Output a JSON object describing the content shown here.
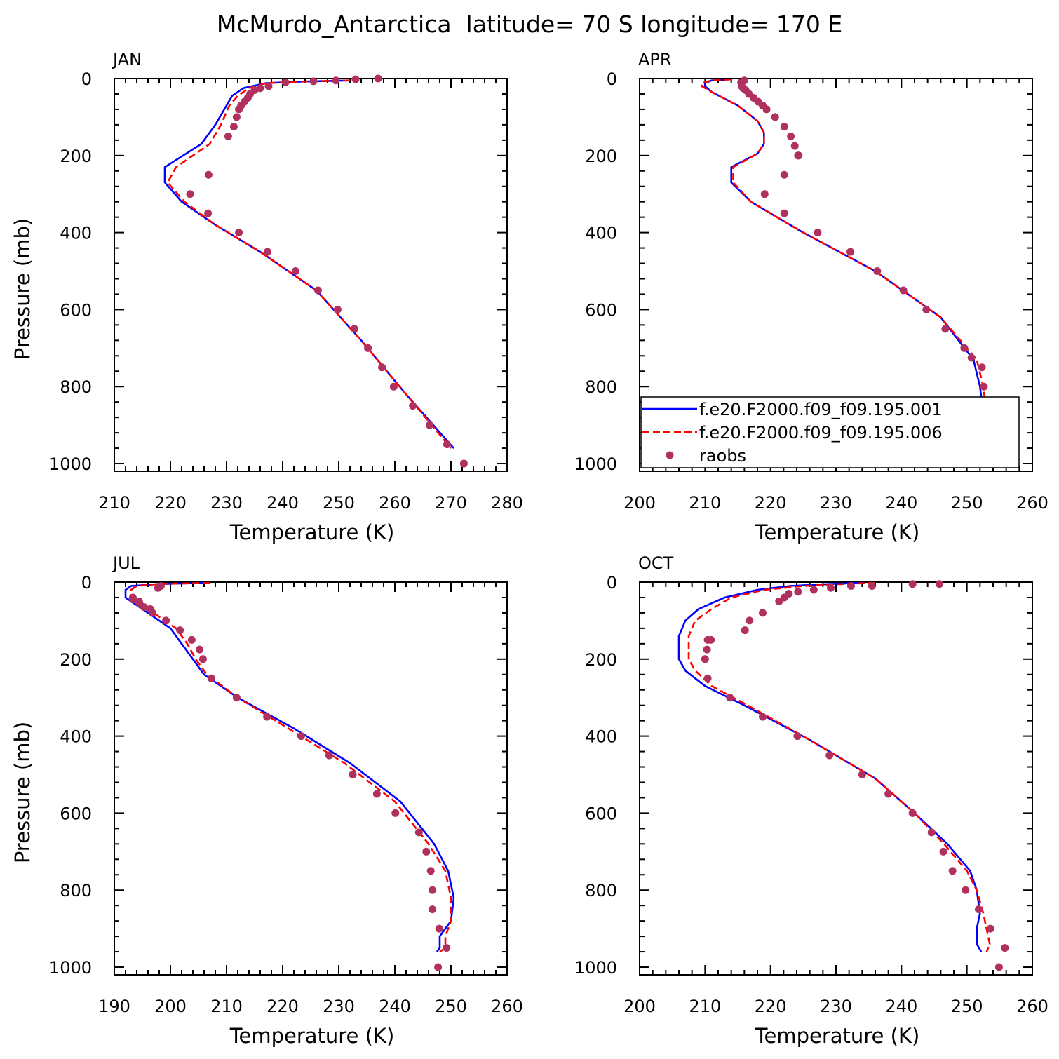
{
  "title": "McMurdo_Antarctica  latitude= 70 S longitude= 170 E",
  "colors": {
    "model_001": "#0000ff",
    "model_006": "#ff0000",
    "raobs": "#b03060"
  },
  "legend": {
    "panel": "APR",
    "placement": "lower-left",
    "entries": [
      {
        "label": "f.e20.F2000.f09_f09.195.001",
        "style": "solid",
        "color": "#0000ff"
      },
      {
        "label": "f.e20.F2000.f09_f09.195.006",
        "style": "dashed",
        "color": "#ff0000"
      },
      {
        "label": "raobs",
        "style": "dots",
        "color": "#b03060"
      }
    ]
  },
  "chart_data": [
    {
      "type": "line",
      "title": "JAN",
      "xlabel": "Temperature (K)",
      "ylabel": "Pressure (mb)",
      "xlim": [
        210,
        280
      ],
      "ylim": [
        1000,
        0
      ],
      "xticks": [
        210,
        220,
        230,
        240,
        250,
        260,
        270,
        280
      ],
      "yticks": [
        0,
        200,
        400,
        600,
        800,
        1000
      ],
      "series": [
        {
          "name": "f.e20.F2000.f09_f09.195.001",
          "style": "solid",
          "color": "#0000ff",
          "x": [
            252,
            243,
            237,
            233,
            231,
            230,
            228,
            225.5,
            219,
            219,
            222,
            228,
            236,
            246,
            254,
            262,
            270.5
          ],
          "y": [
            5,
            8,
            12,
            25,
            45,
            70,
            120,
            170,
            230,
            270,
            320,
            380,
            450,
            550,
            680,
            820,
            960
          ]
        },
        {
          "name": "f.e20.F2000.f09_f09.195.006",
          "style": "dashed",
          "color": "#ff0000",
          "x": [
            252,
            243,
            237,
            234,
            232,
            230.5,
            229,
            227,
            221,
            219.5,
            222.5,
            228,
            236,
            246,
            254,
            262,
            270
          ],
          "y": [
            5,
            8,
            12,
            25,
            45,
            70,
            120,
            170,
            230,
            270,
            320,
            380,
            450,
            550,
            680,
            820,
            960
          ]
        },
        {
          "name": "raobs",
          "style": "dots",
          "color": "#b03060",
          "x": [
            257,
            253,
            249.5,
            245.5,
            240.5,
            237.5,
            236,
            235,
            234.2,
            233.8,
            233.2,
            232.6,
            232.2,
            231.8,
            231.3,
            230.3,
            226.8,
            223.5,
            226.7,
            232.2,
            237.3,
            242.3,
            246.3,
            249.8,
            252.8,
            255.2,
            257.7,
            259.8,
            263.2,
            266.2,
            269.3,
            272.3
          ],
          "y": [
            0,
            2,
            5,
            7,
            10,
            20,
            25,
            30,
            40,
            50,
            60,
            70,
            80,
            100,
            125,
            150,
            250,
            300,
            350,
            400,
            450,
            500,
            550,
            600,
            650,
            700,
            750,
            800,
            850,
            900,
            950,
            1000
          ]
        }
      ]
    },
    {
      "type": "line",
      "title": "APR",
      "xlabel": "Temperature (K)",
      "ylabel": "",
      "xlim": [
        200,
        260
      ],
      "ylim": [
        1000,
        0
      ],
      "xticks": [
        200,
        210,
        220,
        230,
        240,
        250,
        260
      ],
      "yticks": [
        0,
        200,
        400,
        600,
        800,
        1000
      ],
      "series": [
        {
          "name": "f.e20.F2000.f09_f09.195.001",
          "style": "solid",
          "color": "#0000ff",
          "x": [
            214,
            211,
            210,
            210,
            211,
            215,
            218,
            219,
            219,
            218,
            214,
            214,
            217,
            225,
            236,
            246,
            251,
            252,
            252.5,
            253,
            255.5
          ],
          "y": [
            2,
            5,
            12,
            20,
            35,
            70,
            110,
            140,
            170,
            195,
            230,
            270,
            320,
            400,
            500,
            620,
            730,
            800,
            870,
            920,
            960
          ]
        },
        {
          "name": "f.e20.F2000.f09_f09.195.006",
          "style": "dashed",
          "color": "#ff0000",
          "x": [
            214,
            211,
            209.5,
            209.5,
            211,
            215,
            218,
            219,
            219,
            218,
            214.3,
            214.3,
            217,
            225,
            236,
            246,
            251.5,
            252.5,
            253,
            253.5,
            256
          ],
          "y": [
            2,
            5,
            12,
            20,
            35,
            70,
            110,
            140,
            170,
            195,
            230,
            270,
            320,
            400,
            500,
            620,
            730,
            800,
            870,
            920,
            960
          ]
        },
        {
          "name": "raobs",
          "style": "dots",
          "color": "#b03060",
          "x": [
            216,
            215.5,
            215.6,
            215.8,
            216.2,
            216.7,
            217.4,
            218.1,
            218.8,
            219.4,
            220.7,
            222.1,
            223.1,
            223.7,
            224.2,
            224.3,
            222.1,
            219.1,
            222.1,
            227.2,
            232.2,
            236.3,
            240.3,
            243.8,
            246.7,
            249.6,
            250.7,
            252.3,
            252.6,
            252.6,
            253.6,
            254.1,
            255.7,
            256.3
          ],
          "y": [
            5,
            10,
            20,
            25,
            30,
            40,
            50,
            60,
            70,
            80,
            100,
            125,
            150,
            175,
            200,
            200,
            250,
            300,
            350,
            400,
            450,
            500,
            550,
            600,
            650,
            700,
            725,
            750,
            800,
            850,
            875,
            900,
            950,
            1000
          ]
        }
      ]
    },
    {
      "type": "line",
      "title": "JUL",
      "xlabel": "Temperature (K)",
      "ylabel": "Pressure (mb)",
      "xlim": [
        190,
        260
      ],
      "ylim": [
        1000,
        0
      ],
      "xticks": [
        190,
        200,
        210,
        220,
        230,
        240,
        250,
        260
      ],
      "yticks": [
        0,
        200,
        400,
        600,
        800,
        1000
      ],
      "series": [
        {
          "name": "f.e20.F2000.f09_f09.195.001",
          "style": "solid",
          "color": "#0000ff",
          "x": [
            207,
            198,
            193,
            192,
            192,
            193,
            196,
            200,
            202,
            204,
            206,
            212,
            222,
            232,
            241,
            247,
            249.5,
            250.5,
            250,
            248,
            248,
            247.5
          ],
          "y": [
            2,
            5,
            10,
            20,
            40,
            50,
            80,
            120,
            160,
            200,
            240,
            300,
            380,
            470,
            570,
            680,
            750,
            820,
            880,
            920,
            950,
            960
          ]
        },
        {
          "name": "f.e20.F2000.f09_f09.195.006",
          "style": "dashed",
          "color": "#ff0000",
          "x": [
            207,
            198,
            194,
            193,
            193,
            194,
            197,
            201,
            203,
            204.5,
            206.5,
            212,
            221,
            231,
            240,
            246,
            249,
            250,
            250,
            249,
            249,
            248
          ],
          "y": [
            2,
            5,
            10,
            20,
            40,
            50,
            80,
            120,
            160,
            200,
            240,
            300,
            380,
            470,
            570,
            680,
            750,
            820,
            880,
            920,
            950,
            960
          ]
        },
        {
          "name": "raobs",
          "style": "dots",
          "color": "#b03060",
          "x": [
            198.3,
            197.8,
            193.3,
            193.3,
            194.4,
            194.5,
            195.3,
            196.4,
            196.8,
            199.2,
            201.7,
            203.8,
            205.2,
            205.8,
            207.3,
            211.8,
            217.2,
            223.3,
            228.3,
            232.5,
            236.8,
            240.1,
            244.3,
            245.6,
            246.4,
            246.7,
            246.7,
            247.9,
            249.2,
            247.7
          ],
          "y": [
            10,
            15,
            40,
            45,
            50,
            55,
            65,
            70,
            80,
            100,
            125,
            150,
            175,
            200,
            250,
            300,
            350,
            400,
            450,
            500,
            550,
            600,
            650,
            700,
            750,
            800,
            850,
            900,
            950,
            1000
          ]
        }
      ]
    },
    {
      "type": "line",
      "title": "OCT",
      "xlabel": "Temperature (K)",
      "ylabel": "",
      "xlim": [
        200,
        260
      ],
      "ylim": [
        1000,
        0
      ],
      "xticks": [
        200,
        210,
        220,
        230,
        240,
        250,
        260
      ],
      "yticks": [
        0,
        200,
        400,
        600,
        800,
        1000
      ],
      "series": [
        {
          "name": "f.e20.F2000.f09_f09.195.001",
          "style": "solid",
          "color": "#0000ff",
          "x": [
            234,
            229,
            223,
            218,
            213,
            209,
            207,
            206,
            206,
            207,
            210,
            216,
            226,
            236,
            242,
            247,
            250.5,
            251.5,
            252,
            251.5,
            251.5,
            252.2
          ],
          "y": [
            2,
            5,
            10,
            20,
            40,
            70,
            100,
            140,
            200,
            230,
            270,
            320,
            410,
            510,
            600,
            680,
            750,
            800,
            860,
            900,
            940,
            960
          ]
        },
        {
          "name": "f.e20.F2000.f09_f09.195.006",
          "style": "dashed",
          "color": "#ff0000",
          "x": [
            236,
            231,
            225,
            219,
            214,
            211,
            208.5,
            207.5,
            207.5,
            208.5,
            211,
            216.5,
            226,
            236,
            242,
            246.5,
            250,
            251.5,
            252.5,
            253,
            253.5,
            253
          ],
          "y": [
            2,
            5,
            10,
            20,
            40,
            70,
            100,
            140,
            200,
            230,
            270,
            320,
            410,
            510,
            600,
            680,
            750,
            800,
            860,
            900,
            940,
            960
          ]
        },
        {
          "name": "raobs",
          "style": "dots",
          "color": "#b03060",
          "x": [
            245.8,
            241.7,
            235.5,
            232.3,
            229.2,
            226.6,
            224.2,
            222.8,
            222.1,
            221.3,
            218.8,
            216.8,
            216.1,
            210.9,
            210.4,
            210.3,
            210.0,
            210.4,
            213.8,
            218.8,
            224.1,
            229.0,
            234.0,
            238.0,
            241.7,
            244.6,
            246.4,
            247.8,
            249.8,
            251.8,
            253.6,
            255.8,
            254.9
          ],
          "y": [
            5,
            5,
            10,
            10,
            15,
            20,
            25,
            30,
            40,
            50,
            80,
            100,
            125,
            150,
            150,
            175,
            200,
            250,
            300,
            350,
            400,
            450,
            500,
            550,
            600,
            650,
            700,
            750,
            800,
            850,
            900,
            950,
            1000
          ]
        }
      ]
    }
  ]
}
